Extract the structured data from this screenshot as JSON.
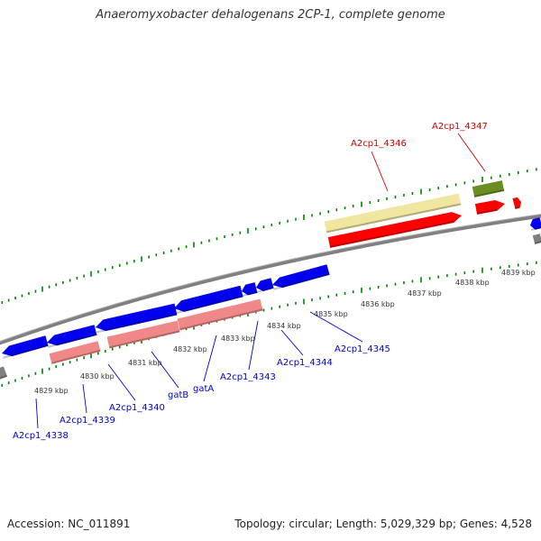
{
  "title": "Anaeromyxobacter dehalogenans 2CP-1, complete genome",
  "footer": {
    "accession": "Accession: NC_011891",
    "summary": "Topology: circular; Length: 5,029,329 bp; Genes: 4,528"
  },
  "colors": {
    "forward_cds": "#ff0000",
    "reverse_cds": "#0000ee",
    "forward_gene": "#f0e6a0",
    "reverse_gene": "#f08888",
    "trna": "#6b8e23",
    "backbone": "#808080",
    "tick": "#008000",
    "forward_label": "#cc0000",
    "reverse_label": "#0000cc"
  },
  "ticks": [
    {
      "label": "4829 kbp"
    },
    {
      "label": "4830 kbp"
    },
    {
      "label": "4831 kbp"
    },
    {
      "label": "4832 kbp"
    },
    {
      "label": "4833 kbp"
    },
    {
      "label": "4834 kbp"
    },
    {
      "label": "4835 kbp"
    },
    {
      "label": "4836 kbp"
    },
    {
      "label": "4837 kbp"
    },
    {
      "label": "4838 kbp"
    },
    {
      "label": "4839 kbp"
    }
  ],
  "labels": [
    {
      "text": "A2cp1_4338",
      "strand": "reverse"
    },
    {
      "text": "A2cp1_4339",
      "strand": "reverse"
    },
    {
      "text": "A2cp1_4340",
      "strand": "reverse"
    },
    {
      "text": "gatB",
      "strand": "reverse"
    },
    {
      "text": "gatA",
      "strand": "reverse"
    },
    {
      "text": "A2cp1_4343",
      "strand": "reverse"
    },
    {
      "text": "A2cp1_4344",
      "strand": "reverse"
    },
    {
      "text": "A2cp1_4345",
      "strand": "reverse"
    },
    {
      "text": "A2cp1_4346",
      "strand": "forward"
    },
    {
      "text": "A2cp1_4347",
      "strand": "forward"
    }
  ]
}
